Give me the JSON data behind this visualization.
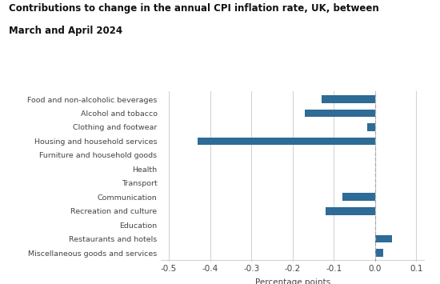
{
  "title_line1": "Contributions to change in the annual CPI inflation rate, UK, between",
  "title_line2": "March and April 2024",
  "categories": [
    "Food and non-alcoholic beverages",
    "Alcohol and tobacco",
    "Clothing and footwear",
    "Housing and household services",
    "Furniture and household goods",
    "Health",
    "Transport",
    "Communication",
    "Recreation and culture",
    "Education",
    "Restaurants and hotels",
    "Miscellaneous goods and services"
  ],
  "values": [
    -0.13,
    -0.17,
    -0.02,
    -0.43,
    0.0,
    0.0,
    0.0,
    -0.08,
    -0.12,
    0.0,
    0.04,
    0.02
  ],
  "bar_color": "#2e6b96",
  "xlabel": "Percentage points",
  "xlim": [
    -0.52,
    0.12
  ],
  "xticks": [
    -0.5,
    -0.4,
    -0.3,
    -0.2,
    -0.1,
    0.0,
    0.1
  ],
  "background_color": "#ffffff",
  "grid_color": "#d0d0d0",
  "dashed_line_color": "#aaaaaa"
}
